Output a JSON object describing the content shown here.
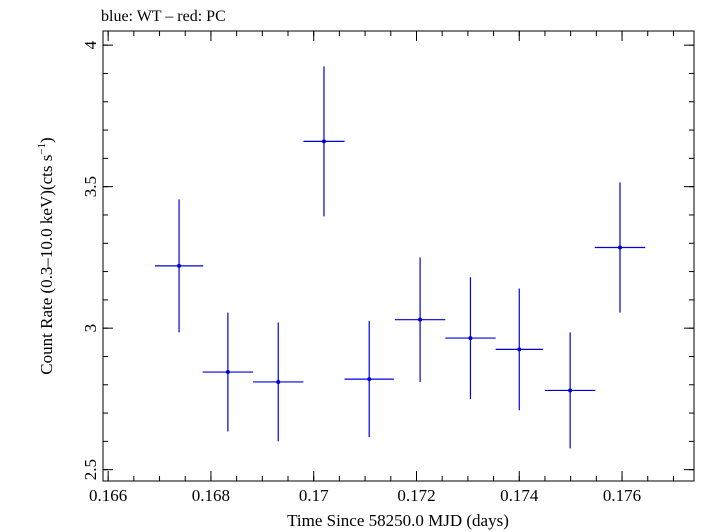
{
  "chart_data": {
    "type": "scatter",
    "title": "blue: WT – red: PC",
    "xlabel": "Time Since 58250.0 MJD (days)",
    "ylabel_main": "Count Rate (0.3–10.0 keV)(cts s",
    "ylabel_sup": "−1",
    "ylabel_close": ")",
    "xlim": [
      0.1659,
      0.1774
    ],
    "ylim": [
      2.46,
      4.05
    ],
    "x_ticks": [
      {
        "value": 0.166,
        "label": "0.166"
      },
      {
        "value": 0.168,
        "label": "0.168"
      },
      {
        "value": 0.17,
        "label": "0.17"
      },
      {
        "value": 0.172,
        "label": "0.172"
      },
      {
        "value": 0.174,
        "label": "0.174"
      },
      {
        "value": 0.176,
        "label": "0.176"
      }
    ],
    "x_minor_step": 0.0005,
    "y_ticks": [
      {
        "value": 2.5,
        "label": "2.5"
      },
      {
        "value": 3.0,
        "label": "3"
      },
      {
        "value": 3.5,
        "label": "3.5"
      },
      {
        "value": 4.0,
        "label": "4"
      }
    ],
    "y_minor_step": 0.1,
    "grid": false,
    "series": [
      {
        "color": "#0000dd",
        "points": [
          {
            "x": 0.16738,
            "xerr": 0.00047,
            "y": 3.22,
            "yerr": 0.235
          },
          {
            "x": 0.16833,
            "xerr": 0.00049,
            "y": 2.845,
            "yerr": 0.21
          },
          {
            "x": 0.16931,
            "xerr": 0.00049,
            "y": 2.81,
            "yerr": 0.21
          },
          {
            "x": 0.1702,
            "xerr": 0.0004,
            "y": 3.66,
            "yerr": 0.265
          },
          {
            "x": 0.17108,
            "xerr": 0.00048,
            "y": 2.82,
            "yerr": 0.205
          },
          {
            "x": 0.17207,
            "xerr": 0.00049,
            "y": 3.03,
            "yerr": 0.22
          },
          {
            "x": 0.17305,
            "xerr": 0.00049,
            "y": 2.965,
            "yerr": 0.215
          },
          {
            "x": 0.174,
            "xerr": 0.00046,
            "y": 2.925,
            "yerr": 0.215
          },
          {
            "x": 0.17499,
            "xerr": 0.00049,
            "y": 2.78,
            "yerr": 0.205
          },
          {
            "x": 0.17596,
            "xerr": 0.00049,
            "y": 3.285,
            "yerr": 0.23
          }
        ]
      }
    ]
  }
}
